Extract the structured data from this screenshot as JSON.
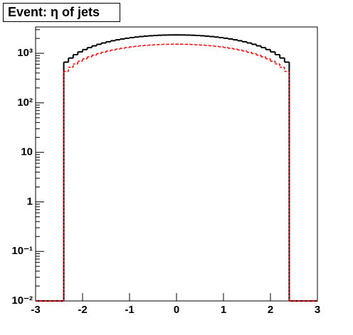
{
  "chart_data": {
    "type": "histogram",
    "title": "Event: η of jets",
    "bins": [
      -3,
      -2.9,
      -2.8,
      -2.7,
      -2.6,
      -2.5,
      -2.4,
      -2.3,
      -2.2,
      -2.1,
      -2,
      -1.9,
      -1.8,
      -1.7,
      -1.6,
      -1.5,
      -1.4,
      -1.3,
      -1.2,
      -1.1,
      -1,
      -0.9,
      -0.8,
      -0.7,
      -0.6,
      -0.5,
      -0.4,
      -0.3,
      -0.2,
      -0.1,
      0,
      0.1,
      0.2,
      0.3,
      0.4,
      0.5,
      0.6,
      0.7,
      0.8,
      0.9,
      1,
      1.1,
      1.2,
      1.3,
      1.4,
      1.5,
      1.6,
      1.7,
      1.8,
      1.9,
      2,
      2.1,
      2.2,
      2.3,
      2.4,
      2.5,
      2.6,
      2.7,
      2.8,
      2.9,
      3
    ],
    "series": [
      {
        "color": "#000000",
        "values": [
          0,
          0,
          0,
          0,
          0,
          0,
          663,
          803,
          938,
          1066,
          1188,
          1304,
          1414,
          1518,
          1616,
          1708,
          1793,
          1873,
          1946,
          2013,
          2074,
          2129,
          2178,
          2221,
          2258,
          2288,
          2313,
          2331,
          2343,
          2349,
          2349,
          2343,
          2331,
          2313,
          2288,
          2258,
          2221,
          2178,
          2129,
          2074,
          2013,
          1946,
          1873,
          1793,
          1708,
          1616,
          1518,
          1414,
          1304,
          1188,
          1066,
          938,
          803,
          663,
          0,
          0,
          0,
          0,
          0,
          0
        ]
      },
      {
        "color": "#ff0000",
        "values": [
          0,
          0,
          0,
          0,
          0,
          0,
          431,
          522,
          610,
          693,
          772,
          848,
          919,
          987,
          1050,
          1110,
          1165,
          1217,
          1265,
          1308,
          1348,
          1384,
          1416,
          1444,
          1468,
          1487,
          1503,
          1515,
          1523,
          1527,
          1527,
          1523,
          1515,
          1503,
          1487,
          1468,
          1444,
          1416,
          1384,
          1348,
          1308,
          1265,
          1217,
          1165,
          1110,
          1050,
          987,
          919,
          848,
          772,
          693,
          610,
          522,
          431,
          0,
          0,
          0,
          0,
          0,
          0
        ]
      }
    ],
    "xlim": [
      -3,
      3
    ],
    "xticks": [
      -3,
      -2,
      -1,
      0,
      1,
      2,
      3
    ],
    "ylim": [
      0.01,
      3400
    ],
    "yticks": [
      {
        "value": 0.01,
        "label": "10⁻²"
      },
      {
        "value": 0.1,
        "label": "10⁻¹"
      },
      1,
      10,
      {
        "value": 100,
        "label": "10²"
      },
      {
        "value": 1000,
        "label": "10³"
      }
    ],
    "log_y": true,
    "grid": false
  }
}
